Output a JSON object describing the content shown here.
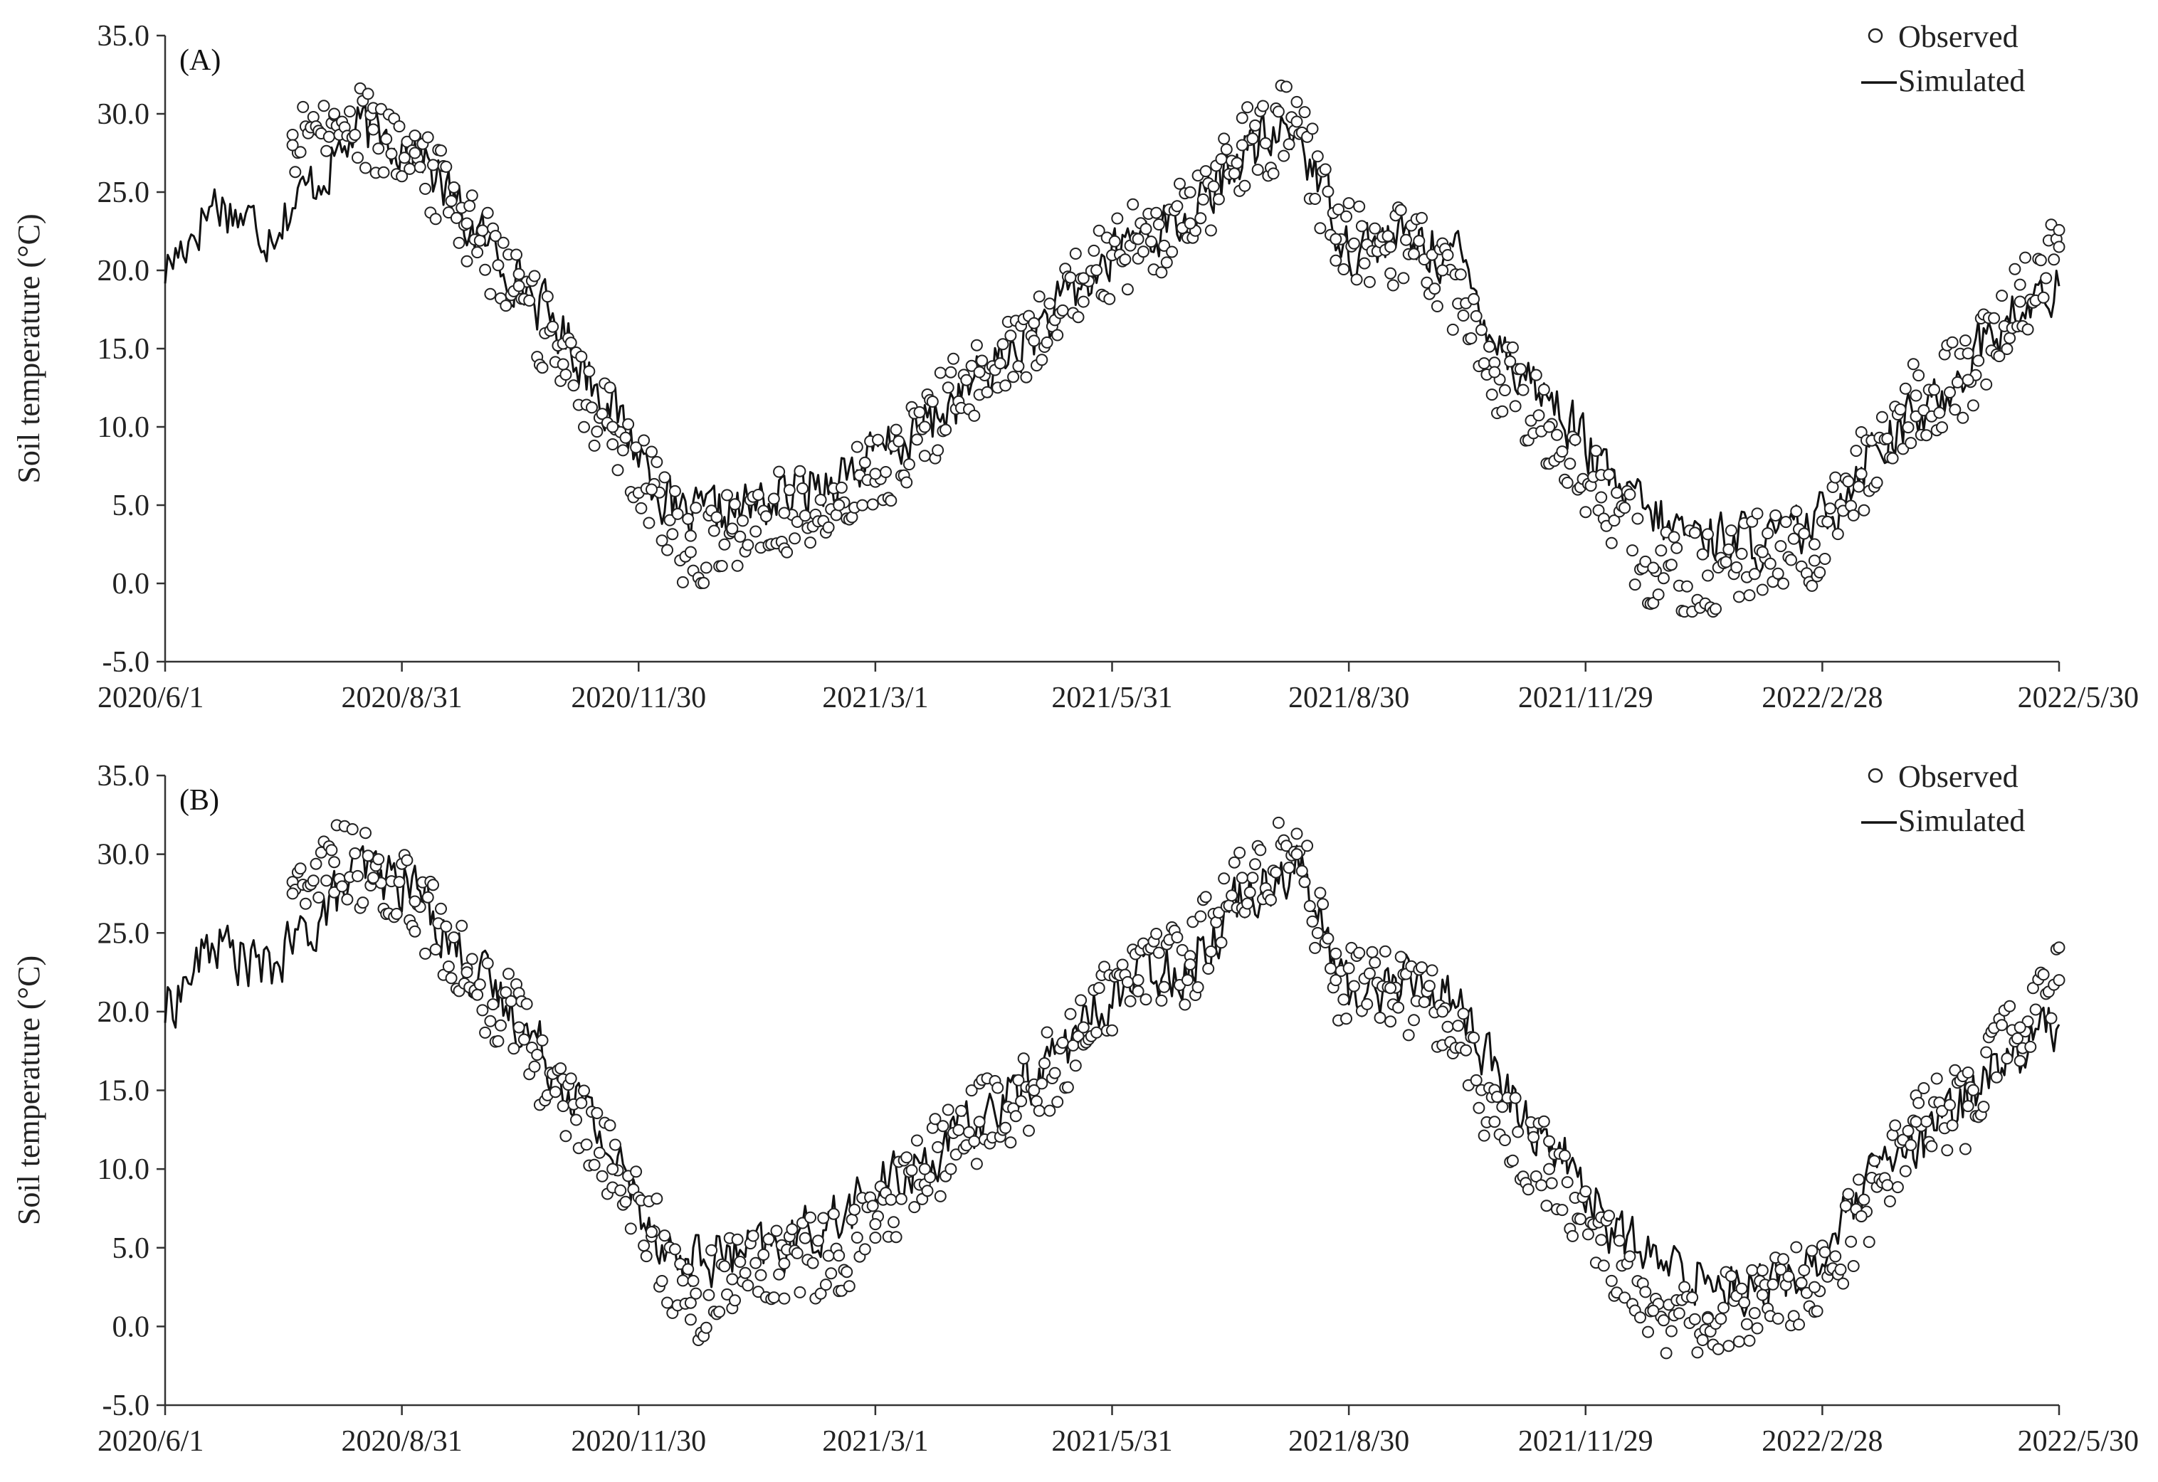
{
  "chart_data": [
    {
      "panel_label": "(A)",
      "type": "line+scatter",
      "ylabel": "Soil temperature (°C)",
      "ylim": [
        -5,
        35
      ],
      "yticks": [
        "-5.0",
        "0.0",
        "5.0",
        "10.0",
        "15.0",
        "20.0",
        "25.0",
        "30.0",
        "35.0"
      ],
      "xticks": [
        "2020/6/1",
        "2020/8/31",
        "2020/11/30",
        "2021/3/1",
        "2021/5/31",
        "2021/8/30",
        "2021/11/29",
        "2022/2/28",
        "2022/5/30"
      ],
      "legend": {
        "placement": "top-right",
        "observed": "Observed",
        "simulated": "Simulated"
      },
      "series": [
        {
          "name": "Simulated",
          "style": "line",
          "x": [
            "2020/6/1",
            "2020/6/20",
            "2020/7/10",
            "2020/7/25",
            "2020/8/15",
            "2020/9/5",
            "2020/9/25",
            "2020/10/15",
            "2020/11/5",
            "2020/11/30",
            "2020/12/15",
            "2021/1/5",
            "2021/1/25",
            "2021/2/15",
            "2021/3/1",
            "2021/3/20",
            "2021/4/10",
            "2021/5/1",
            "2021/5/20",
            "2021/6/10",
            "2021/6/30",
            "2021/7/20",
            "2021/8/10",
            "2021/8/30",
            "2021/9/20",
            "2021/10/10",
            "2021/10/30",
            "2021/11/20",
            "2021/12/10",
            "2021/12/31",
            "2022/1/20",
            "2022/2/10",
            "2022/2/28",
            "2022/3/20",
            "2022/4/10",
            "2022/5/1",
            "2022/5/30"
          ],
          "y": [
            20.0,
            24.5,
            22.5,
            25.0,
            29.0,
            28.0,
            23.0,
            19.5,
            15.0,
            8.5,
            4.0,
            4.5,
            5.5,
            7.0,
            8.0,
            10.0,
            13.0,
            16.0,
            19.0,
            22.5,
            23.0,
            27.5,
            29.0,
            21.5,
            22.0,
            21.0,
            14.5,
            11.0,
            6.0,
            3.5,
            3.0,
            2.5,
            4.0,
            9.0,
            11.0,
            15.5,
            19.0
          ]
        },
        {
          "name": "Observed",
          "style": "marker",
          "x": [
            "2020/7/20",
            "2020/8/5",
            "2020/8/20",
            "2020/9/5",
            "2020/9/25",
            "2020/10/15",
            "2020/11/1",
            "2020/11/20",
            "2020/12/5",
            "2020/12/20",
            "2021/1/5",
            "2021/1/25",
            "2021/2/15",
            "2021/3/1",
            "2021/3/20",
            "2021/4/10",
            "2021/5/1",
            "2021/5/20",
            "2021/6/10",
            "2021/6/30",
            "2021/7/20",
            "2021/8/10",
            "2021/8/25",
            "2021/9/15",
            "2021/10/5",
            "2021/10/25",
            "2021/11/15",
            "2021/12/5",
            "2021/12/25",
            "2022/1/15",
            "2022/2/5",
            "2022/2/25",
            "2022/3/15",
            "2022/4/5",
            "2022/4/25",
            "2022/5/15",
            "2022/5/30"
          ],
          "y": [
            28.0,
            30.0,
            29.0,
            27.5,
            23.0,
            19.0,
            14.0,
            10.0,
            6.0,
            2.0,
            3.5,
            4.5,
            5.0,
            7.0,
            10.0,
            13.5,
            15.5,
            19.5,
            22.0,
            23.0,
            28.0,
            29.5,
            22.0,
            21.5,
            20.0,
            13.5,
            10.0,
            5.5,
            1.0,
            0.5,
            2.0,
            2.5,
            7.0,
            12.0,
            13.0,
            18.0,
            21.5
          ]
        }
      ]
    },
    {
      "panel_label": "(B)",
      "type": "line+scatter",
      "ylabel": "Soil temperature (°C)",
      "ylim": [
        -5,
        35
      ],
      "yticks": [
        "-5.0",
        "0.0",
        "5.0",
        "10.0",
        "15.0",
        "20.0",
        "25.0",
        "30.0",
        "35.0"
      ],
      "xticks": [
        "2020/6/1",
        "2020/8/31",
        "2020/11/30",
        "2021/3/1",
        "2021/5/31",
        "2021/8/30",
        "2021/11/29",
        "2022/2/28",
        "2022/5/30"
      ],
      "legend": {
        "placement": "top-right",
        "observed": "Observed",
        "simulated": "Simulated"
      },
      "series": [
        {
          "name": "Simulated",
          "style": "line",
          "x": [
            "2020/6/1",
            "2020/6/20",
            "2020/7/10",
            "2020/7/25",
            "2020/8/15",
            "2020/9/5",
            "2020/9/25",
            "2020/10/15",
            "2020/11/5",
            "2020/11/30",
            "2020/12/15",
            "2021/1/5",
            "2021/1/25",
            "2021/2/15",
            "2021/3/1",
            "2021/3/20",
            "2021/4/10",
            "2021/5/1",
            "2021/5/20",
            "2021/6/10",
            "2021/6/30",
            "2021/7/20",
            "2021/8/10",
            "2021/8/30",
            "2021/9/20",
            "2021/10/10",
            "2021/10/30",
            "2021/11/20",
            "2021/12/10",
            "2021/12/31",
            "2022/1/20",
            "2022/2/10",
            "2022/2/28",
            "2022/3/20",
            "2022/4/10",
            "2022/5/1",
            "2022/5/30"
          ],
          "y": [
            20.0,
            24.5,
            22.5,
            25.0,
            29.0,
            28.0,
            23.0,
            19.5,
            15.0,
            8.0,
            4.0,
            4.5,
            5.0,
            7.0,
            8.5,
            10.5,
            13.0,
            16.0,
            19.0,
            22.5,
            23.0,
            27.5,
            29.5,
            21.0,
            22.0,
            21.0,
            14.5,
            11.0,
            6.0,
            3.5,
            3.0,
            2.5,
            4.5,
            9.5,
            12.0,
            16.0,
            19.5
          ]
        },
        {
          "name": "Observed",
          "style": "marker",
          "x": [
            "2020/7/20",
            "2020/8/5",
            "2020/8/20",
            "2020/9/5",
            "2020/9/25",
            "2020/10/15",
            "2020/11/1",
            "2020/11/20",
            "2020/12/5",
            "2020/12/20",
            "2021/1/5",
            "2021/1/25",
            "2021/2/15",
            "2021/3/1",
            "2021/3/20",
            "2021/4/10",
            "2021/5/1",
            "2021/5/20",
            "2021/6/10",
            "2021/6/30",
            "2021/7/20",
            "2021/8/10",
            "2021/8/25",
            "2021/9/15",
            "2021/10/5",
            "2021/10/25",
            "2021/11/15",
            "2021/12/5",
            "2021/12/25",
            "2022/1/15",
            "2022/2/5",
            "2022/2/25",
            "2022/3/15",
            "2022/4/5",
            "2022/4/25",
            "2022/5/15",
            "2022/5/30"
          ],
          "y": [
            27.5,
            29.5,
            28.5,
            27.0,
            22.5,
            19.0,
            14.0,
            10.0,
            6.0,
            1.5,
            3.0,
            4.0,
            4.5,
            6.5,
            10.0,
            13.0,
            15.0,
            19.0,
            22.0,
            23.0,
            28.5,
            30.0,
            22.0,
            21.5,
            20.0,
            13.0,
            10.0,
            5.5,
            1.0,
            0.5,
            2.0,
            2.5,
            7.0,
            13.0,
            14.0,
            19.0,
            22.0
          ]
        }
      ]
    }
  ]
}
